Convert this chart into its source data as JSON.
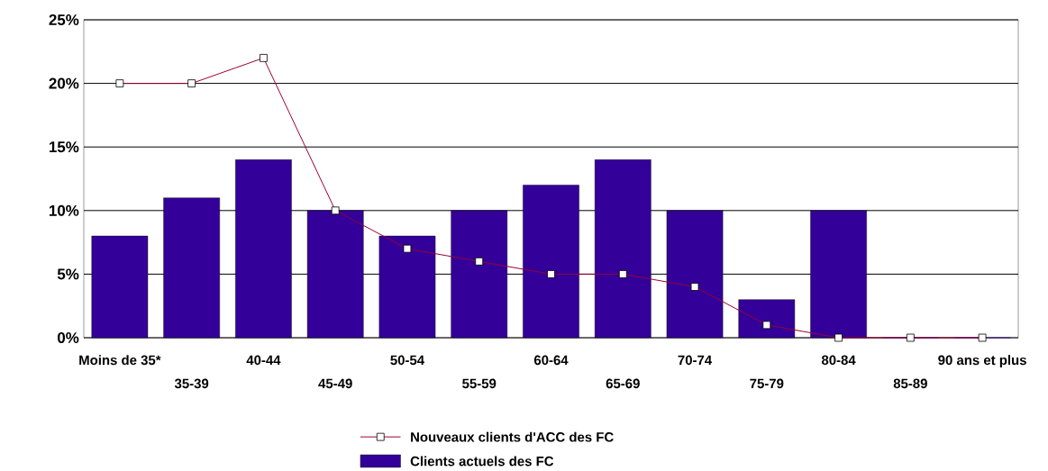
{
  "chart_data": {
    "type": "bar",
    "categories": [
      "Moins de 35*",
      "35-39",
      "40-44",
      "45-49",
      "50-54",
      "55-59",
      "60-64",
      "65-69",
      "70-74",
      "75-79",
      "80-84",
      "85-89",
      "90 ans et plus"
    ],
    "series": [
      {
        "name": "Nouveaux clients d'ACC des FC",
        "type": "line",
        "color": "#990033",
        "marker": "square",
        "values": [
          20,
          20,
          22,
          10,
          7,
          6,
          5,
          5,
          4,
          1,
          0,
          0,
          0
        ]
      },
      {
        "name": "Clients actuels des FC",
        "type": "bar",
        "color": "#330099",
        "values": [
          8,
          11,
          14,
          10,
          8,
          10,
          12,
          14,
          10,
          3,
          10,
          0,
          0
        ]
      }
    ],
    "ylim": [
      0,
      25
    ],
    "yticks": [
      {
        "value": 0,
        "label": "0%"
      },
      {
        "value": 5,
        "label": "5%"
      },
      {
        "value": 10,
        "label": "10%"
      },
      {
        "value": 15,
        "label": "15%"
      },
      {
        "value": 20,
        "label": "20%"
      },
      {
        "value": 25,
        "label": "25%"
      }
    ],
    "grid": "y",
    "legend": "bottom"
  }
}
